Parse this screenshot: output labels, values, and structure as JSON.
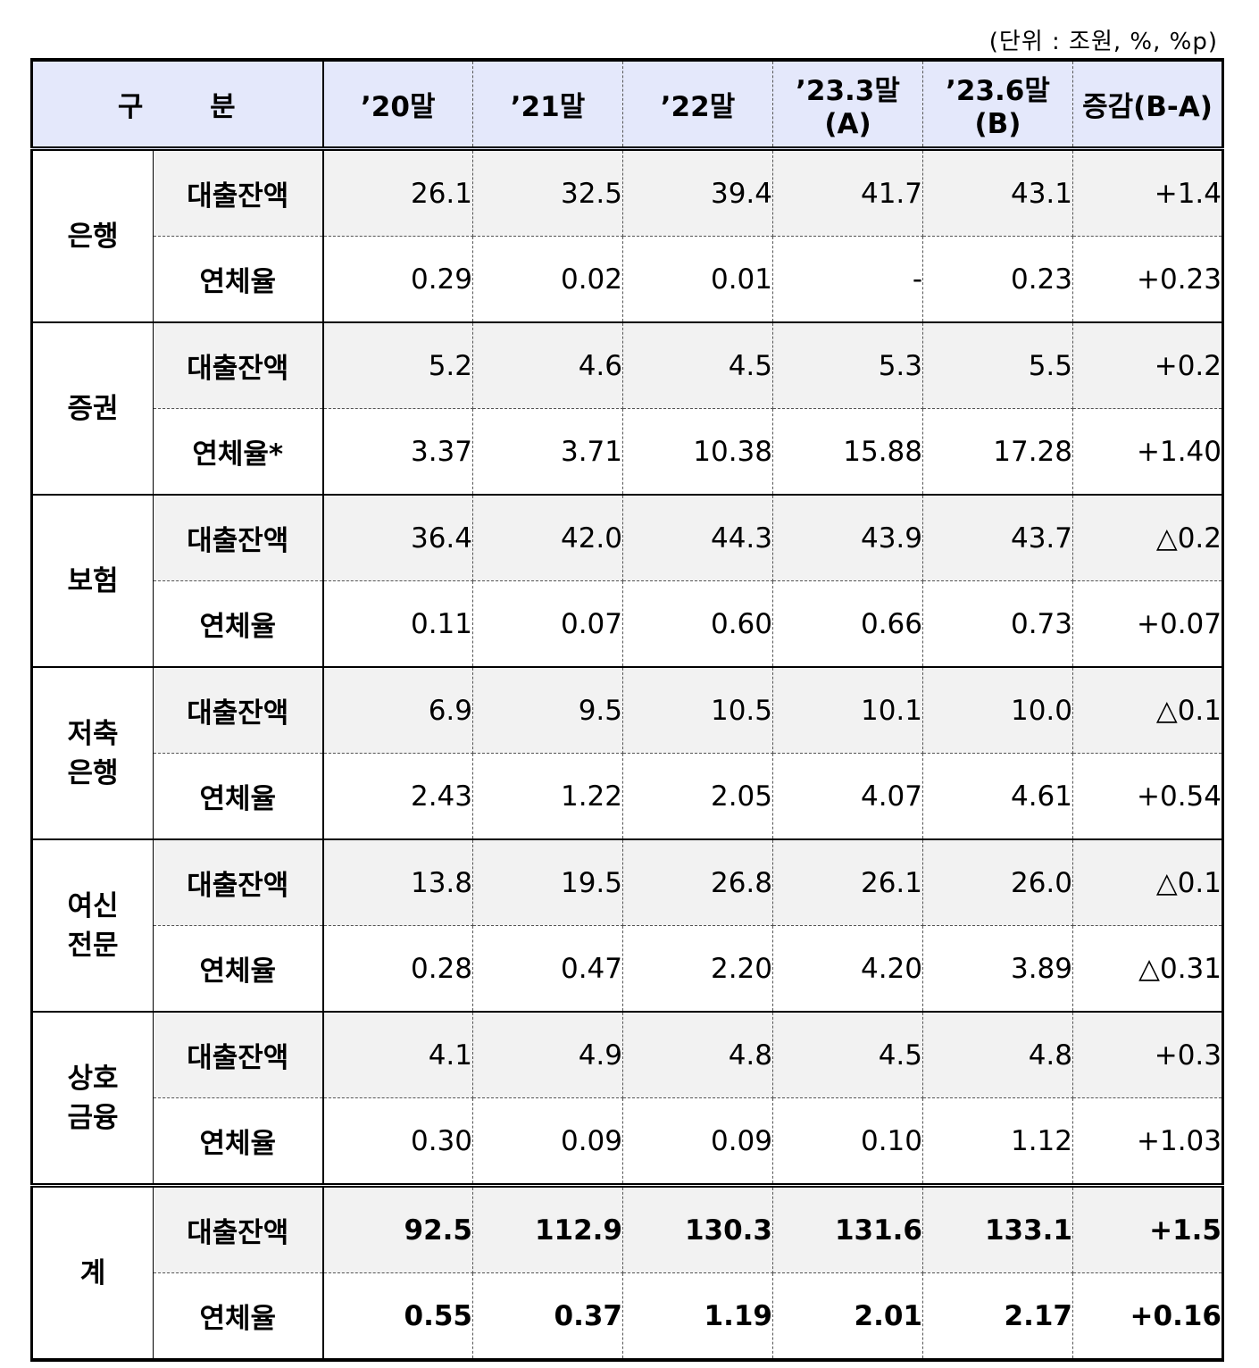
{
  "unit_note": "(단위 : 조원, %, %p)",
  "header": {
    "category": "구 분",
    "columns": [
      "’20말",
      "’21말",
      "’22말",
      "’23.3말(A)",
      "’23.6말(B)",
      "증감(B-A)"
    ]
  },
  "groups": [
    {
      "name": "은행",
      "rows": [
        {
          "label": "대출잔액",
          "values": [
            "26.1",
            "32.5",
            "39.4",
            "41.7",
            "43.1",
            "+1.4"
          ]
        },
        {
          "label": "연체율",
          "values": [
            "0.29",
            "0.02",
            "0.01",
            "-",
            "0.23",
            "+0.23"
          ]
        }
      ]
    },
    {
      "name": "증권",
      "rows": [
        {
          "label": "대출잔액",
          "values": [
            "5.2",
            "4.6",
            "4.5",
            "5.3",
            "5.5",
            "+0.2"
          ]
        },
        {
          "label": "연체율*",
          "values": [
            "3.37",
            "3.71",
            "10.38",
            "15.88",
            "17.28",
            "+1.40"
          ]
        }
      ]
    },
    {
      "name": "보험",
      "rows": [
        {
          "label": "대출잔액",
          "values": [
            "36.4",
            "42.0",
            "44.3",
            "43.9",
            "43.7",
            "△0.2"
          ]
        },
        {
          "label": "연체율",
          "values": [
            "0.11",
            "0.07",
            "0.60",
            "0.66",
            "0.73",
            "+0.07"
          ]
        }
      ]
    },
    {
      "name": "저축은행",
      "name_lines": [
        "저축",
        "은행"
      ],
      "rows": [
        {
          "label": "대출잔액",
          "values": [
            "6.9",
            "9.5",
            "10.5",
            "10.1",
            "10.0",
            "△0.1"
          ]
        },
        {
          "label": "연체율",
          "values": [
            "2.43",
            "1.22",
            "2.05",
            "4.07",
            "4.61",
            "+0.54"
          ]
        }
      ]
    },
    {
      "name": "여신전문",
      "name_lines": [
        "여신",
        "전문"
      ],
      "rows": [
        {
          "label": "대출잔액",
          "values": [
            "13.8",
            "19.5",
            "26.8",
            "26.1",
            "26.0",
            "△0.1"
          ]
        },
        {
          "label": "연체율",
          "values": [
            "0.28",
            "0.47",
            "2.20",
            "4.20",
            "3.89",
            "△0.31"
          ]
        }
      ]
    },
    {
      "name": "상호금융",
      "name_lines": [
        "상호",
        "금융"
      ],
      "rows": [
        {
          "label": "대출잔액",
          "values": [
            "4.1",
            "4.9",
            "4.8",
            "4.5",
            "4.8",
            "+0.3"
          ]
        },
        {
          "label": "연체율",
          "values": [
            "0.30",
            "0.09",
            "0.09",
            "0.10",
            "1.12",
            "+1.03"
          ]
        }
      ]
    },
    {
      "name": "계",
      "total": true,
      "rows": [
        {
          "label": "대출잔액",
          "values": [
            "92.5",
            "112.9",
            "130.3",
            "131.6",
            "133.1",
            "+1.5"
          ]
        },
        {
          "label": "연체율",
          "values": [
            "0.55",
            "0.37",
            "1.19",
            "2.01",
            "2.17",
            "+0.16"
          ]
        }
      ]
    }
  ]
}
